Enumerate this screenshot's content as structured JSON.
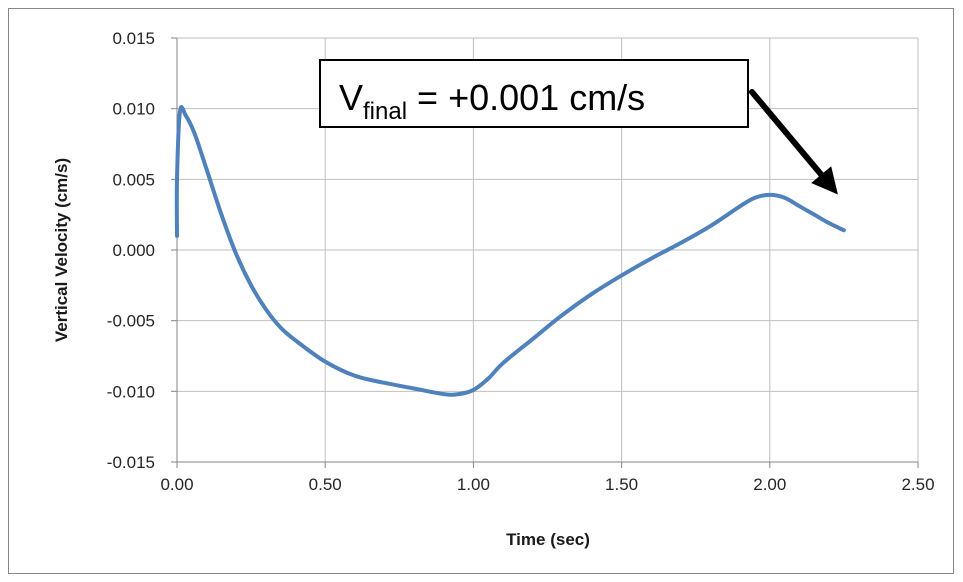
{
  "chart_data": {
    "type": "line",
    "xlabel": "Time (sec)",
    "ylabel": "Vertical Velocity (cm/s)",
    "xlim": [
      0,
      2.5
    ],
    "ylim": [
      -0.015,
      0.015
    ],
    "xticks": [
      "0.00",
      "0.50",
      "1.00",
      "1.50",
      "2.00",
      "2.50"
    ],
    "yticks": [
      "0.015",
      "0.010",
      "0.005",
      "0.000",
      "-0.005",
      "-0.010",
      "-0.015"
    ],
    "grid": true,
    "legend": "none",
    "series": [
      {
        "color": "#4F81BD",
        "x": [
          0.0,
          0.0,
          0.01,
          0.03,
          0.06,
          0.1,
          0.15,
          0.2,
          0.25,
          0.3,
          0.35,
          0.4,
          0.5,
          0.6,
          0.7,
          0.8,
          0.9,
          0.95,
          1.0,
          1.05,
          1.1,
          1.2,
          1.3,
          1.4,
          1.5,
          1.6,
          1.7,
          1.8,
          1.9,
          1.95,
          2.0,
          2.05,
          2.1,
          2.15,
          2.2,
          2.25
        ],
        "y": [
          0.001,
          0.005,
          0.0098,
          0.0095,
          0.0082,
          0.0057,
          0.0025,
          -0.0003,
          -0.0025,
          -0.0042,
          -0.0055,
          -0.0064,
          -0.0079,
          -0.0089,
          -0.0094,
          -0.0098,
          -0.0102,
          -0.0102,
          -0.0099,
          -0.0091,
          -0.008,
          -0.0063,
          -0.0046,
          -0.0031,
          -0.0018,
          -0.0006,
          0.0005,
          0.0017,
          0.0031,
          0.0037,
          0.0039,
          0.0037,
          0.0031,
          0.0025,
          0.0019,
          0.0014
        ]
      }
    ],
    "annotations": [
      {
        "text_main": "V",
        "text_sub": "final",
        "text_rest": " = +0.001 cm/s",
        "arrow_target_x": 2.25,
        "arrow_target_y": 0.0035
      }
    ]
  }
}
